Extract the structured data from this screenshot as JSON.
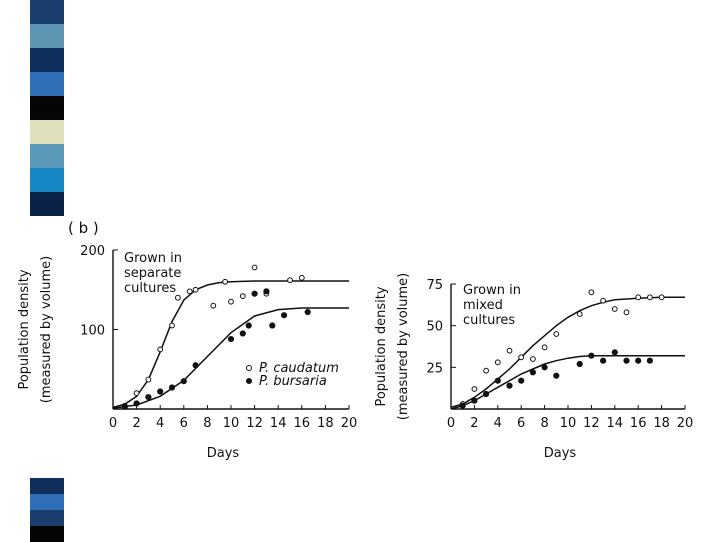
{
  "slide": {
    "stripes_top": [
      "#1a3f6e",
      "#5d95b3",
      "#0f2f5d",
      "#2e6fb8",
      "#050505",
      "#e0dfbc",
      "#5a9ab8",
      "#1788c6",
      "#0b2248"
    ],
    "stripes_bottom": [
      "#0f2f5d",
      "#2e6fb8",
      "#1a3f6e",
      "#050505"
    ]
  },
  "figure": {
    "panel_label": "( b )"
  },
  "chart_data": [
    {
      "type": "scatter",
      "title": "",
      "annotation": "Grown in separate cultures",
      "annotation_lines": [
        "Grown in",
        "separate",
        "cultures"
      ],
      "xlabel": "Days",
      "ylabel": [
        "Population density",
        "(measured by volume)"
      ],
      "xlim": [
        0,
        20
      ],
      "ylim": [
        0,
        200
      ],
      "xticks": [
        "0",
        "2",
        "4",
        "6",
        "8",
        "10",
        "12",
        "14",
        "16",
        "18",
        "20"
      ],
      "yticks": [
        {
          "value": 100,
          "label": "100"
        },
        {
          "value": 200,
          "label": "200"
        }
      ],
      "legend": {
        "position": "bottom-right"
      },
      "series": [
        {
          "name": "P. caudatum",
          "marker": "open-circle",
          "points": [
            [
              1,
              4
            ],
            [
              2,
              20
            ],
            [
              3,
              37
            ],
            [
              4,
              75
            ],
            [
              5,
              105
            ],
            [
              5.5,
              140
            ],
            [
              6.5,
              148
            ],
            [
              7,
              150
            ],
            [
              8.5,
              130
            ],
            [
              9.5,
              160
            ],
            [
              10,
              135
            ],
            [
              11,
              142
            ],
            [
              12,
              178
            ],
            [
              13,
              145
            ],
            [
              15,
              162
            ],
            [
              16,
              165
            ]
          ],
          "curve": [
            [
              0,
              2
            ],
            [
              1,
              6
            ],
            [
              2,
              16
            ],
            [
              3,
              37
            ],
            [
              4,
              72
            ],
            [
              5,
              110
            ],
            [
              6,
              137
            ],
            [
              7,
              150
            ],
            [
              8,
              156
            ],
            [
              9,
              159
            ],
            [
              10,
              160
            ],
            [
              12,
              161
            ],
            [
              20,
              161
            ]
          ]
        },
        {
          "name": "P. bursaria",
          "marker": "filled-circle",
          "points": [
            [
              1,
              3
            ],
            [
              2,
              7
            ],
            [
              3,
              15
            ],
            [
              4,
              22
            ],
            [
              5,
              27
            ],
            [
              6,
              35
            ],
            [
              7,
              55
            ],
            [
              10,
              88
            ],
            [
              11,
              95
            ],
            [
              11.5,
              105
            ],
            [
              12,
              145
            ],
            [
              13,
              148
            ],
            [
              13.5,
              105
            ],
            [
              14.5,
              118
            ],
            [
              16.5,
              122
            ]
          ],
          "curve": [
            [
              0,
              1
            ],
            [
              2,
              5
            ],
            [
              4,
              16
            ],
            [
              6,
              36
            ],
            [
              8,
              66
            ],
            [
              10,
              96
            ],
            [
              12,
              117
            ],
            [
              14,
              125
            ],
            [
              16,
              127
            ],
            [
              20,
              127
            ]
          ]
        }
      ]
    },
    {
      "type": "scatter",
      "title": "",
      "annotation": "Grown in mixed cultures",
      "annotation_lines": [
        "Grown in",
        "mixed",
        "cultures"
      ],
      "xlabel": "Days",
      "ylabel": [
        "Population density",
        "(measured by volume)"
      ],
      "xlim": [
        0,
        20
      ],
      "ylim": [
        0,
        75
      ],
      "xticks": [
        "0",
        "2",
        "4",
        "6",
        "8",
        "10",
        "12",
        "14",
        "16",
        "18",
        "20"
      ],
      "yticks": [
        {
          "value": 25,
          "label": "25"
        },
        {
          "value": 50,
          "label": "50"
        },
        {
          "value": 75,
          "label": "75"
        }
      ],
      "series": [
        {
          "name": "P. caudatum",
          "marker": "open-circle",
          "points": [
            [
              1,
              3
            ],
            [
              2,
              12
            ],
            [
              3,
              23
            ],
            [
              4,
              28
            ],
            [
              5,
              35
            ],
            [
              6,
              31
            ],
            [
              7,
              30
            ],
            [
              8,
              37
            ],
            [
              9,
              45
            ],
            [
              11,
              57
            ],
            [
              12,
              70
            ],
            [
              13,
              65
            ],
            [
              14,
              60
            ],
            [
              15,
              58
            ],
            [
              16,
              67
            ],
            [
              17,
              67
            ],
            [
              18,
              67
            ]
          ],
          "curve": [
            [
              0,
              1
            ],
            [
              1,
              3
            ],
            [
              2,
              7
            ],
            [
              3,
              12
            ],
            [
              4,
              18
            ],
            [
              5,
              24
            ],
            [
              6,
              31
            ],
            [
              7,
              38
            ],
            [
              8,
              44
            ],
            [
              9,
              50
            ],
            [
              10,
              55
            ],
            [
              11,
              59
            ],
            [
              12,
              62
            ],
            [
              13,
              64
            ],
            [
              14,
              65.5
            ],
            [
              15,
              66
            ],
            [
              16,
              66.5
            ],
            [
              18,
              67
            ],
            [
              20,
              67
            ]
          ]
        },
        {
          "name": "P. bursaria",
          "marker": "filled-circle",
          "points": [
            [
              1,
              2
            ],
            [
              2,
              5
            ],
            [
              3,
              9
            ],
            [
              4,
              17
            ],
            [
              5,
              14
            ],
            [
              6,
              17
            ],
            [
              7,
              22
            ],
            [
              8,
              25
            ],
            [
              9,
              20
            ],
            [
              11,
              27
            ],
            [
              12,
              32
            ],
            [
              13,
              29
            ],
            [
              14,
              34
            ],
            [
              15,
              29
            ],
            [
              16,
              29
            ],
            [
              17,
              29
            ]
          ],
          "curve": [
            [
              0,
              0
            ],
            [
              1,
              2
            ],
            [
              2,
              5
            ],
            [
              3,
              9
            ],
            [
              4,
              13
            ],
            [
              5,
              17
            ],
            [
              6,
              21
            ],
            [
              7,
              24
            ],
            [
              8,
              27
            ],
            [
              9,
              29
            ],
            [
              10,
              30.5
            ],
            [
              11,
              31.5
            ],
            [
              12,
              32
            ],
            [
              20,
              32
            ]
          ]
        }
      ]
    }
  ]
}
